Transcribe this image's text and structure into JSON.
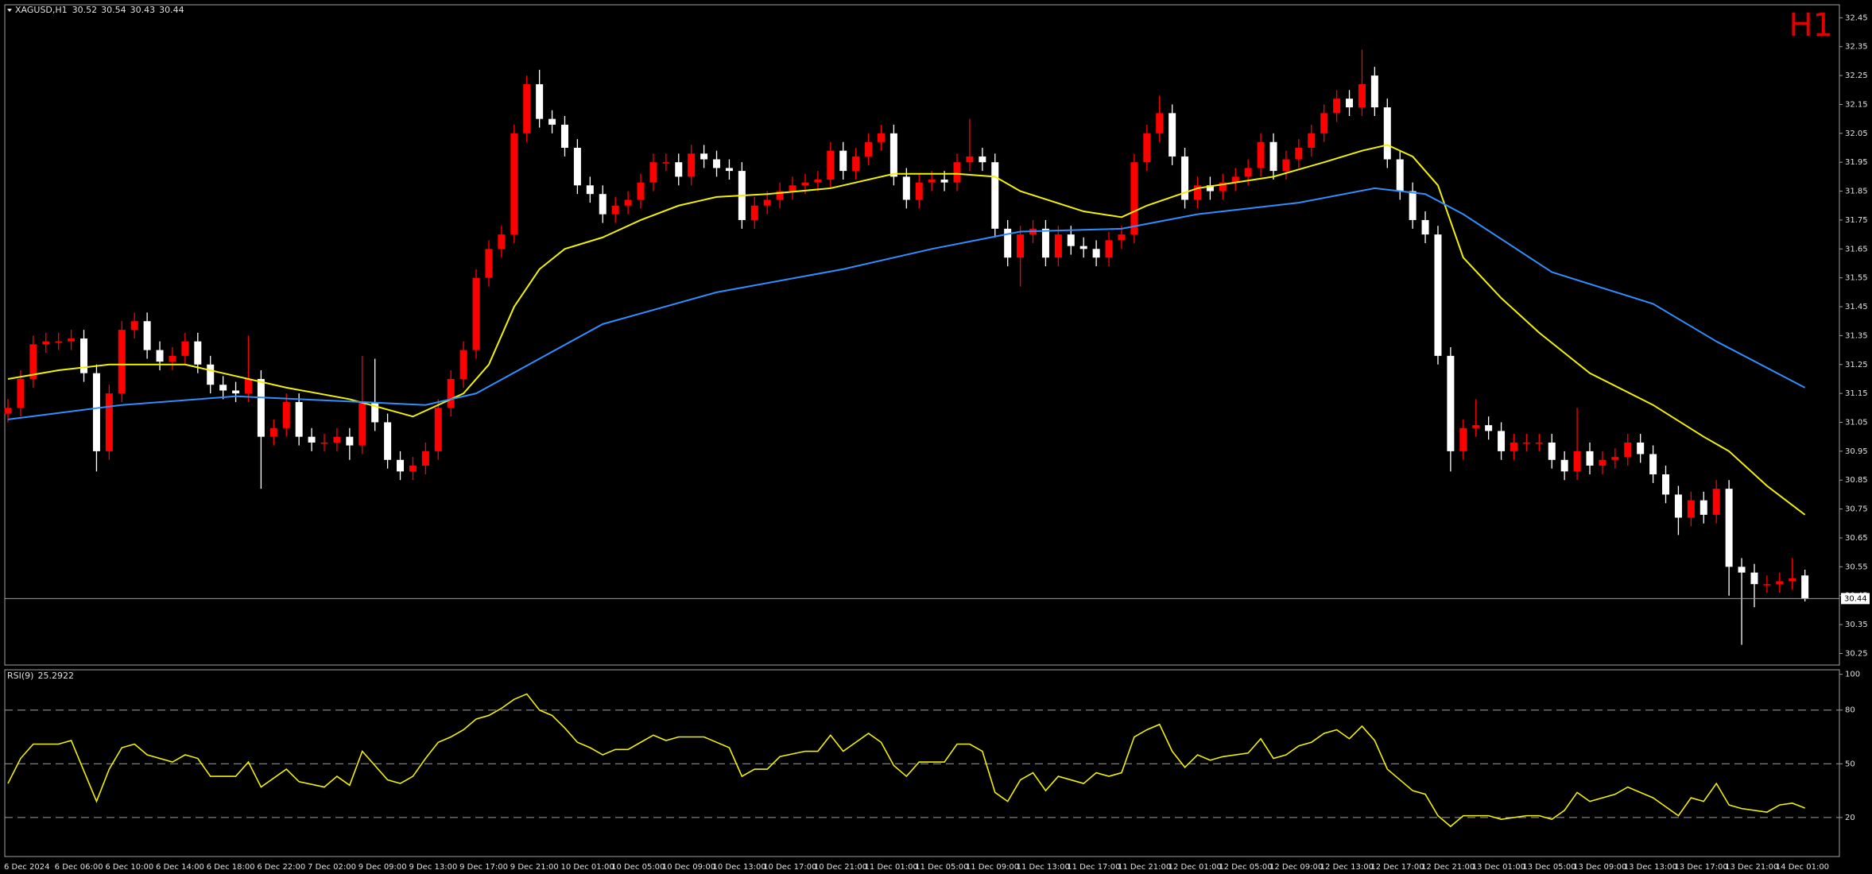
{
  "chart_data": [
    {
      "type": "candlestick",
      "title": "XAGUSD,H1",
      "timeframe": "H1",
      "header_values": [
        30.52,
        30.54,
        30.43,
        30.44
      ],
      "categories": [
        "6 Dec 2024",
        null,
        null,
        null,
        "6 Dec 06:00",
        null,
        null,
        null,
        "6 Dec 10:00",
        null,
        null,
        null,
        "6 Dec 14:00",
        null,
        null,
        null,
        "6 Dec 18:00",
        null,
        null,
        null,
        "6 Dec 22:00",
        null,
        null,
        null,
        "7 Dec 02:00",
        null,
        null,
        null,
        "9 Dec 09:00",
        null,
        null,
        null,
        "9 Dec 13:00",
        null,
        null,
        null,
        "9 Dec 17:00",
        null,
        null,
        null,
        "9 Dec 21:00",
        null,
        null,
        null,
        "10 Dec 01:00",
        null,
        null,
        null,
        "10 Dec 05:00",
        null,
        null,
        null,
        "10 Dec 09:00",
        null,
        null,
        null,
        "10 Dec 13:00",
        null,
        null,
        null,
        "10 Dec 17:00",
        null,
        null,
        null,
        "10 Dec 21:00",
        null,
        null,
        null,
        "11 Dec 01:00",
        null,
        null,
        null,
        "11 Dec 05:00",
        null,
        null,
        null,
        "11 Dec 09:00",
        null,
        null,
        null,
        "11 Dec 13:00",
        null,
        null,
        null,
        "11 Dec 17:00",
        null,
        null,
        null,
        "11 Dec 21:00",
        null,
        null,
        null,
        "12 Dec 01:00",
        null,
        null,
        null,
        "12 Dec 05:00",
        null,
        null,
        null,
        "12 Dec 09:00",
        null,
        null,
        null,
        "12 Dec 13:00",
        null,
        null,
        null,
        "12 Dec 17:00",
        null,
        null,
        null,
        "12 Dec 21:00",
        null,
        null,
        null,
        "13 Dec 01:00",
        null,
        null,
        null,
        "13 Dec 05:00",
        null,
        null,
        null,
        "13 Dec 09:00",
        null,
        null,
        null,
        "13 Dec 13:00",
        null,
        null,
        null,
        "13 Dec 17:00",
        null,
        null,
        null,
        "13 Dec 21:00",
        null,
        null,
        null,
        "14 Dec 01:00",
        null,
        null
      ],
      "open": [
        31.08,
        31.1,
        31.2,
        31.32,
        31.33,
        31.33,
        31.34,
        31.22,
        30.95,
        31.15,
        31.37,
        31.4,
        31.3,
        31.26,
        31.28,
        31.33,
        31.25,
        31.18,
        31.16,
        31.15,
        31.2,
        31.0,
        31.03,
        31.12,
        31.0,
        30.98,
        30.98,
        31.0,
        30.97,
        31.12,
        31.05,
        30.92,
        30.88,
        30.9,
        30.95,
        31.1,
        31.2,
        31.3,
        31.55,
        31.65,
        31.7,
        32.05,
        32.22,
        32.1,
        32.08,
        32.0,
        31.87,
        31.84,
        31.77,
        31.8,
        31.82,
        31.88,
        31.95,
        31.95,
        31.9,
        31.98,
        31.96,
        31.93,
        31.92,
        31.75,
        31.8,
        31.82,
        31.85,
        31.87,
        31.88,
        31.89,
        31.99,
        31.92,
        31.97,
        32.02,
        32.05,
        31.9,
        31.82,
        31.88,
        31.89,
        31.88,
        31.95,
        31.97,
        31.95,
        31.72,
        31.62,
        31.7,
        31.72,
        31.62,
        31.7,
        31.66,
        31.65,
        31.62,
        31.68,
        31.7,
        31.95,
        32.05,
        32.12,
        31.97,
        31.82,
        31.87,
        31.85,
        31.88,
        31.9,
        31.93,
        32.02,
        31.92,
        31.96,
        32.0,
        32.05,
        32.12,
        32.17,
        32.14,
        32.25,
        32.14,
        31.96,
        31.85,
        31.75,
        31.7,
        31.28,
        30.95,
        31.03,
        31.04,
        31.02,
        30.95,
        30.98,
        30.98,
        30.98,
        30.92,
        30.88,
        30.95,
        30.9,
        30.92,
        30.93,
        30.98,
        30.94,
        30.87,
        30.8,
        30.72,
        30.78,
        30.73,
        30.82,
        30.55,
        30.53,
        30.49,
        30.49,
        30.5,
        30.52
      ],
      "high": [
        31.13,
        31.23,
        31.35,
        31.36,
        31.36,
        31.37,
        31.37,
        31.25,
        31.18,
        31.4,
        31.43,
        31.43,
        31.33,
        31.31,
        31.36,
        31.36,
        31.28,
        31.21,
        31.19,
        31.35,
        31.23,
        31.06,
        31.15,
        31.15,
        31.03,
        31.01,
        31.03,
        31.03,
        31.28,
        31.27,
        31.08,
        30.95,
        30.93,
        30.98,
        31.13,
        31.23,
        31.33,
        31.58,
        31.68,
        31.73,
        32.08,
        32.25,
        32.27,
        32.13,
        32.11,
        32.03,
        31.9,
        31.87,
        31.83,
        31.85,
        31.91,
        31.98,
        31.98,
        31.98,
        32.01,
        32.01,
        31.99,
        31.96,
        31.95,
        31.83,
        31.85,
        31.88,
        31.9,
        31.91,
        31.92,
        32.02,
        32.02,
        32.0,
        32.05,
        32.08,
        32.08,
        31.93,
        31.91,
        31.92,
        31.92,
        31.98,
        32.1,
        32.0,
        31.98,
        31.75,
        31.73,
        31.75,
        31.75,
        31.73,
        31.73,
        31.69,
        31.68,
        31.71,
        31.73,
        31.98,
        32.08,
        32.18,
        32.15,
        32.0,
        31.9,
        31.9,
        31.91,
        31.93,
        31.96,
        32.05,
        32.05,
        31.99,
        32.03,
        32.08,
        32.15,
        32.2,
        32.2,
        32.34,
        32.28,
        32.17,
        31.99,
        31.88,
        31.78,
        31.73,
        31.31,
        31.06,
        31.13,
        31.07,
        31.05,
        31.01,
        31.01,
        31.01,
        31.01,
        30.95,
        31.1,
        30.98,
        30.95,
        30.96,
        31.01,
        31.01,
        30.97,
        30.9,
        30.83,
        30.81,
        30.81,
        30.85,
        30.85,
        30.58,
        30.56,
        30.52,
        30.53,
        30.58,
        30.54
      ],
      "low": [
        31.05,
        31.07,
        31.17,
        31.29,
        31.3,
        31.3,
        31.19,
        30.88,
        30.92,
        31.12,
        31.34,
        31.27,
        31.23,
        31.23,
        31.25,
        31.22,
        31.15,
        31.13,
        31.12,
        31.12,
        30.82,
        30.97,
        31.0,
        30.97,
        30.95,
        30.95,
        30.95,
        30.92,
        30.94,
        31.02,
        30.89,
        30.85,
        30.85,
        30.87,
        30.92,
        31.07,
        31.17,
        31.27,
        31.52,
        31.62,
        31.67,
        32.02,
        32.07,
        32.05,
        31.97,
        31.84,
        31.81,
        31.74,
        31.74,
        31.77,
        31.79,
        31.85,
        31.92,
        31.87,
        31.87,
        31.93,
        31.9,
        31.89,
        31.72,
        31.72,
        31.77,
        31.79,
        31.82,
        31.84,
        31.85,
        31.86,
        31.89,
        31.89,
        31.94,
        31.99,
        31.87,
        31.79,
        31.79,
        31.85,
        31.85,
        31.85,
        31.92,
        31.92,
        31.69,
        31.59,
        31.52,
        31.67,
        31.59,
        31.59,
        31.63,
        31.62,
        31.59,
        31.59,
        31.65,
        31.67,
        31.92,
        32.02,
        31.94,
        31.79,
        31.79,
        31.82,
        31.82,
        31.85,
        31.87,
        31.9,
        31.89,
        31.89,
        31.93,
        31.97,
        32.02,
        32.09,
        32.11,
        32.11,
        32.11,
        31.93,
        31.82,
        31.72,
        31.67,
        31.25,
        30.88,
        30.92,
        31.0,
        30.99,
        30.92,
        30.92,
        30.95,
        30.95,
        30.89,
        30.85,
        30.85,
        30.87,
        30.87,
        30.89,
        30.9,
        30.91,
        30.84,
        30.77,
        30.66,
        30.69,
        30.7,
        30.7,
        30.45,
        30.28,
        30.41,
        30.46,
        30.46,
        30.47,
        30.43
      ],
      "close": [
        31.1,
        31.2,
        31.32,
        31.33,
        31.33,
        31.34,
        31.22,
        30.95,
        31.15,
        31.37,
        31.4,
        31.3,
        31.26,
        31.28,
        31.33,
        31.25,
        31.18,
        31.16,
        31.15,
        31.2,
        31.0,
        31.03,
        31.12,
        31.0,
        30.98,
        30.98,
        31.0,
        30.97,
        31.12,
        31.05,
        30.92,
        30.88,
        30.9,
        30.95,
        31.1,
        31.2,
        31.3,
        31.55,
        31.65,
        31.7,
        32.05,
        32.22,
        32.1,
        32.08,
        32.0,
        31.87,
        31.84,
        31.77,
        31.8,
        31.82,
        31.88,
        31.95,
        31.95,
        31.9,
        31.98,
        31.96,
        31.93,
        31.92,
        31.75,
        31.8,
        31.82,
        31.85,
        31.87,
        31.88,
        31.89,
        31.99,
        31.92,
        31.97,
        32.02,
        32.05,
        31.9,
        31.82,
        31.88,
        31.89,
        31.88,
        31.95,
        31.97,
        31.95,
        31.72,
        31.62,
        31.7,
        31.72,
        31.62,
        31.7,
        31.66,
        31.65,
        31.62,
        31.68,
        31.7,
        31.95,
        32.05,
        32.12,
        31.97,
        31.82,
        31.87,
        31.85,
        31.88,
        31.9,
        31.93,
        32.02,
        31.92,
        31.96,
        32.0,
        32.05,
        32.12,
        32.17,
        32.14,
        32.22,
        32.14,
        31.96,
        31.85,
        31.75,
        31.7,
        31.28,
        30.95,
        31.03,
        31.04,
        31.02,
        30.95,
        30.98,
        30.98,
        30.98,
        30.92,
        30.88,
        30.95,
        30.9,
        30.92,
        30.93,
        30.98,
        30.94,
        30.87,
        30.8,
        30.72,
        30.78,
        30.73,
        30.82,
        30.55,
        30.53,
        30.49,
        30.49,
        30.5,
        30.51,
        30.44
      ],
      "up_color": "#ff0000",
      "down_color": "#ffffff",
      "moving_averages": [
        {
          "color": "#f2f200",
          "x": [
            0,
            4,
            8,
            14,
            17,
            22,
            27,
            32,
            36,
            38,
            40,
            42,
            44,
            47,
            50,
            53,
            56,
            60,
            65,
            70,
            75,
            78,
            80,
            85,
            88,
            90,
            94,
            100,
            104,
            107,
            109,
            111,
            113,
            115,
            118,
            121,
            125,
            130,
            134,
            136,
            139,
            142
          ],
          "values": [
            31.2,
            31.23,
            31.25,
            31.25,
            31.22,
            31.17,
            31.13,
            31.07,
            31.15,
            31.25,
            31.45,
            31.58,
            31.65,
            31.69,
            31.75,
            31.8,
            31.83,
            31.84,
            31.86,
            31.91,
            31.91,
            31.9,
            31.85,
            31.78,
            31.76,
            31.8,
            31.86,
            31.9,
            31.95,
            31.99,
            32.01,
            31.97,
            31.87,
            31.62,
            31.48,
            31.36,
            31.22,
            31.11,
            31.0,
            30.95,
            30.83,
            30.73
          ]
        },
        {
          "color": "#2f8fff",
          "x": [
            0,
            9,
            18,
            28,
            33,
            37,
            42,
            47,
            56,
            66,
            73,
            80,
            88,
            94,
            102,
            108,
            112,
            115,
            122,
            130,
            135,
            142
          ],
          "values": [
            31.06,
            31.11,
            31.14,
            31.12,
            31.11,
            31.15,
            31.27,
            31.39,
            31.5,
            31.58,
            31.65,
            31.71,
            31.72,
            31.77,
            31.81,
            31.86,
            31.84,
            31.77,
            31.57,
            31.46,
            31.33,
            31.17
          ]
        }
      ],
      "ylim": [
        30.21,
        32.495
      ],
      "yticks": [
        32.45,
        32.35,
        32.25,
        32.15,
        32.05,
        31.95,
        31.85,
        31.75,
        31.65,
        31.55,
        31.45,
        31.35,
        31.25,
        31.15,
        31.05,
        30.95,
        30.85,
        30.75,
        30.65,
        30.55,
        30.45,
        30.35,
        30.25
      ],
      "last_price": 30.44
    },
    {
      "type": "line",
      "title": "RSI(9)",
      "current_value": 25.2922,
      "color": "#f2f200",
      "x": [
        0,
        1,
        2,
        4,
        5,
        7,
        8,
        9,
        10,
        11,
        13,
        14,
        15,
        16,
        18,
        19,
        20,
        22,
        23,
        25,
        26,
        27,
        28,
        30,
        31,
        32,
        33,
        34,
        35,
        36,
        37,
        38,
        39,
        40,
        41,
        42,
        43,
        44,
        45,
        46,
        47,
        48,
        49,
        50,
        51,
        52,
        53,
        55,
        57,
        58,
        59,
        60,
        61,
        63,
        64,
        65,
        66,
        67,
        68,
        69,
        70,
        71,
        72,
        74,
        75,
        76,
        77,
        78,
        79,
        80,
        81,
        82,
        83,
        84,
        85,
        86,
        87,
        88,
        89,
        90,
        91,
        92,
        93,
        94,
        95,
        96,
        98,
        99,
        100,
        101,
        102,
        103,
        104,
        105,
        106,
        107,
        108,
        109,
        110,
        111,
        112,
        113,
        114,
        115,
        117,
        118,
        120,
        121,
        122,
        123,
        124,
        125,
        127,
        128,
        129,
        130,
        131,
        132,
        133,
        134,
        135,
        136,
        137,
        139,
        140,
        141,
        142
      ],
      "values": [
        39,
        53,
        61,
        61,
        63,
        29,
        47,
        59,
        61,
        55,
        51,
        55,
        53,
        43,
        43,
        51,
        37,
        47,
        40,
        37,
        43,
        38,
        57,
        41,
        39,
        43,
        53,
        62,
        65,
        69,
        75,
        77,
        81,
        86,
        89,
        80,
        77,
        70,
        62,
        59,
        55,
        58,
        58,
        62,
        66,
        63,
        65,
        65,
        59,
        43,
        47,
        47,
        54,
        57,
        57,
        66,
        57,
        62,
        67,
        62,
        49,
        43,
        51,
        51,
        61,
        61,
        57,
        34,
        29,
        41,
        45,
        35,
        43,
        41,
        39,
        45,
        43,
        45,
        65,
        69,
        72,
        57,
        48,
        55,
        52,
        54,
        56,
        64,
        53,
        55,
        60,
        62,
        67,
        69,
        64,
        71,
        63,
        47,
        41,
        35,
        33,
        21,
        15,
        21,
        21,
        19,
        21,
        21,
        19,
        24,
        34,
        29,
        33,
        37,
        34,
        31,
        26,
        21,
        31,
        29,
        39,
        27,
        25,
        23,
        27,
        28,
        25.2922
      ],
      "ylim": [
        -1.8,
        102.5
      ],
      "yticks": [
        100,
        80,
        50,
        20
      ],
      "levels": [
        80,
        50,
        20
      ]
    }
  ]
}
